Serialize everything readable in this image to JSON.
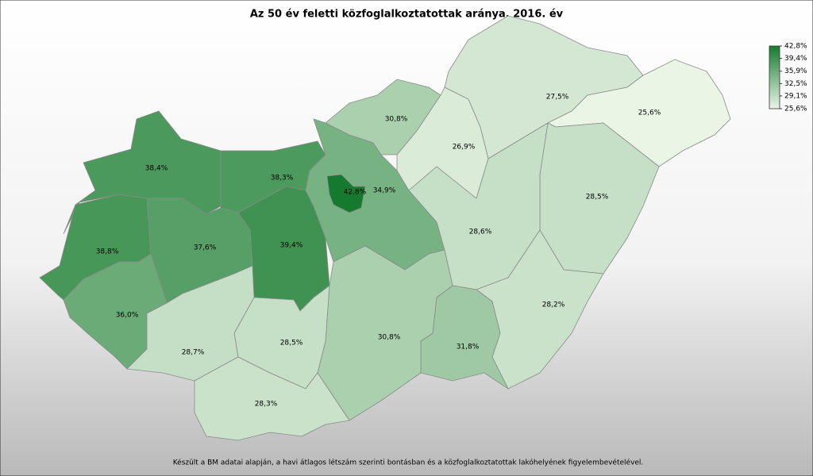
{
  "chart_data": {
    "type": "choropleth",
    "title": "Az 50 év feletti közfoglalkoztatottak aránya, 2016. év",
    "footnote": "Készült a BM adatai alapján, a havi átlagos létszám szerinti bontásban és a közfoglalkoztatottak lakóhelyének figyelembevételével.",
    "values": [
      38.4,
      38.3,
      38.8,
      37.6,
      39.4,
      36.0,
      34.9,
      42.8,
      30.8,
      26.9,
      27.5,
      25.6,
      28.5,
      28.6,
      28.2,
      31.8,
      30.8,
      28.5,
      28.7,
      28.3
    ],
    "value_labels": [
      "38,4%",
      "38,3%",
      "38,8%",
      "37,6%",
      "39,4%",
      "36,0%",
      "34,9%",
      "42,8%",
      "30,8%",
      "26,9%",
      "27,5%",
      "25,6%",
      "28,5%",
      "28,6%",
      "28,2%",
      "31,8%",
      "30,8%",
      "28,5%",
      "28,7%",
      "28,3%"
    ],
    "color_low": "#eaf5e6",
    "color_high": "#167a2e",
    "clim": [
      25.6,
      42.8
    ],
    "legend_ticks": [
      {
        "value": 42.8,
        "label": "42,8%"
      },
      {
        "value": 39.4,
        "label": "39,4%"
      },
      {
        "value": 35.9,
        "label": "35,9%"
      },
      {
        "value": 32.5,
        "label": "32,5%"
      },
      {
        "value": 29.1,
        "label": "29,1%"
      },
      {
        "value": 25.6,
        "label": "25,6%"
      }
    ]
  }
}
